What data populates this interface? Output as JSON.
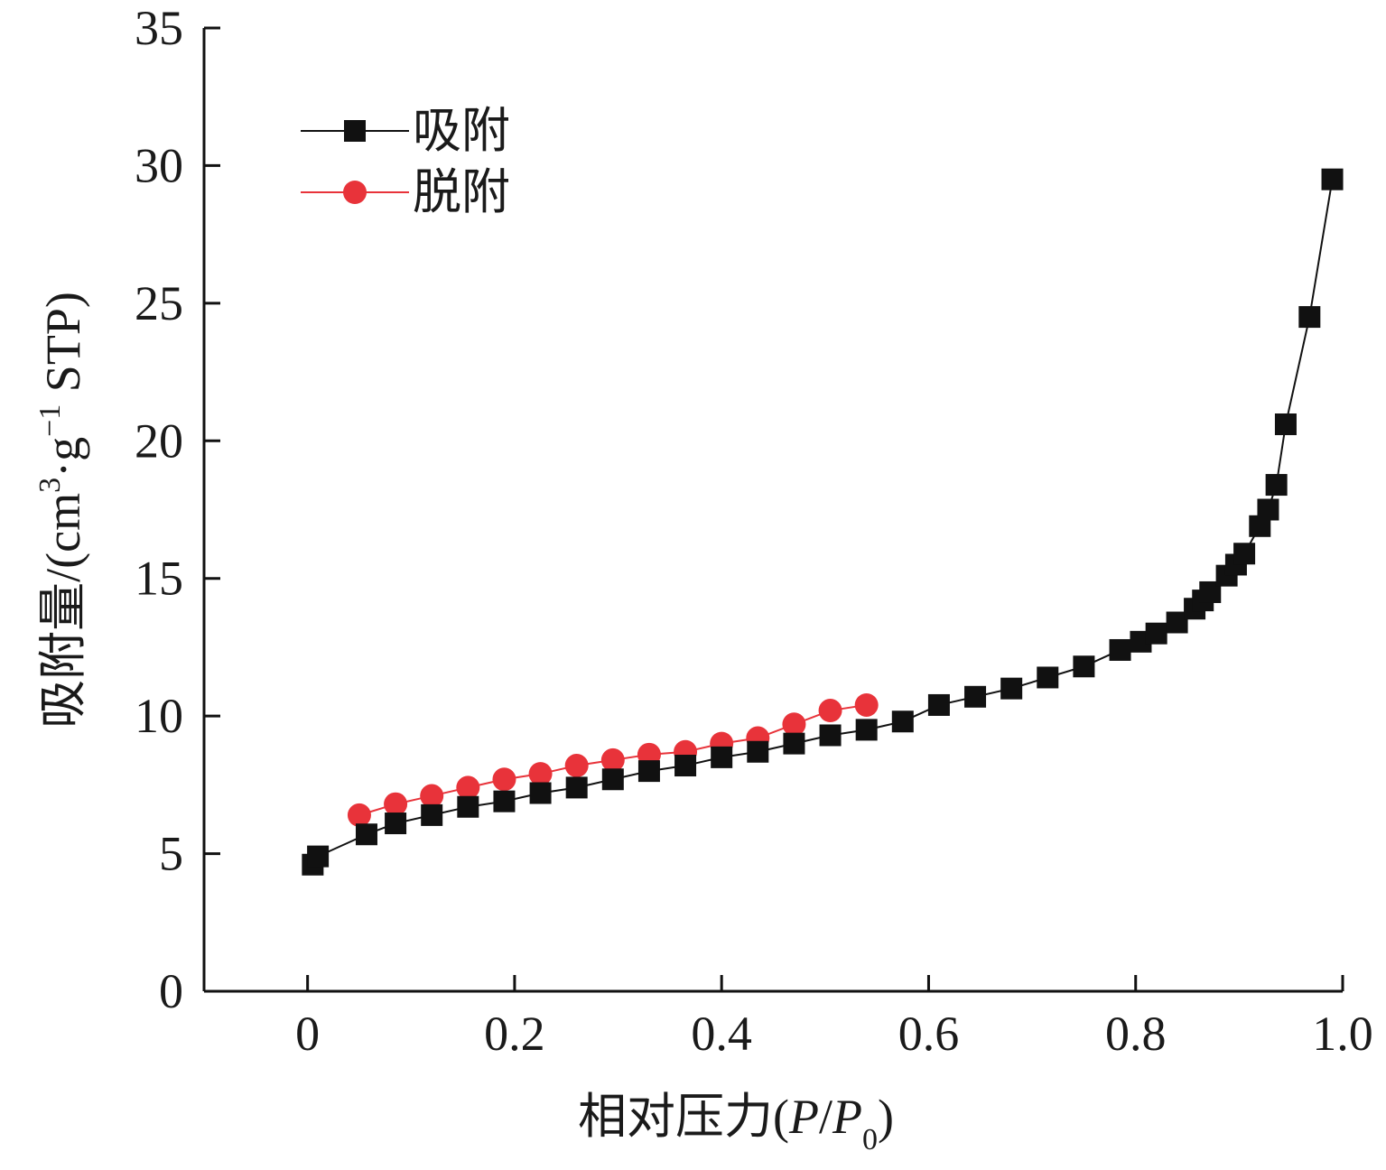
{
  "chart_data": {
    "type": "scatter",
    "xlabel_main": "相对压力(",
    "xlabel_p": "P",
    "xlabel_slash": "/",
    "xlabel_p0": "P",
    "xlabel_sub": "0",
    "xlabel_close": ")",
    "ylabel_main": "吸附量/(cm",
    "ylabel_sup1": "3",
    "ylabel_dot_g": "·g",
    "ylabel_sup2": "−1",
    "ylabel_end": " STP)",
    "xlim": [
      -0.1,
      1.0
    ],
    "ylim": [
      0,
      35
    ],
    "xticks": [
      0,
      0.2,
      0.4,
      0.6,
      0.8,
      1.0
    ],
    "xtick_labels": [
      "0",
      "0.2",
      "0.4",
      "0.6",
      "0.8",
      "1.0"
    ],
    "yticks": [
      0,
      5,
      10,
      15,
      20,
      25,
      30,
      35
    ],
    "ytick_labels": [
      "0",
      "5",
      "10",
      "15",
      "20",
      "25",
      "30",
      "35"
    ],
    "legend_position": "top-left",
    "series": [
      {
        "name": "吸附",
        "marker": "square",
        "color": "#111111",
        "x": [
          0.005,
          0.01,
          0.057,
          0.085,
          0.12,
          0.155,
          0.19,
          0.225,
          0.26,
          0.295,
          0.33,
          0.365,
          0.4,
          0.435,
          0.47,
          0.505,
          0.54,
          0.575,
          0.61,
          0.645,
          0.68,
          0.715,
          0.75,
          0.785,
          0.805,
          0.82,
          0.84,
          0.857,
          0.865,
          0.872,
          0.888,
          0.897,
          0.905,
          0.92,
          0.928,
          0.936,
          0.945,
          0.968,
          0.99
        ],
        "y": [
          4.6,
          4.9,
          5.7,
          6.1,
          6.4,
          6.7,
          6.9,
          7.2,
          7.4,
          7.7,
          8.0,
          8.2,
          8.5,
          8.7,
          9.0,
          9.3,
          9.5,
          9.8,
          10.4,
          10.7,
          11.0,
          11.4,
          11.8,
          12.4,
          12.7,
          13.0,
          13.4,
          13.9,
          14.2,
          14.5,
          15.1,
          15.5,
          15.9,
          16.9,
          17.5,
          18.4,
          20.6,
          24.5,
          29.5
        ]
      },
      {
        "name": "脱附",
        "marker": "circle",
        "color": "#e8333a",
        "x": [
          0.05,
          0.085,
          0.12,
          0.155,
          0.19,
          0.225,
          0.26,
          0.295,
          0.33,
          0.365,
          0.4,
          0.435,
          0.47,
          0.505,
          0.54
        ],
        "y": [
          6.4,
          6.8,
          7.1,
          7.4,
          7.7,
          7.9,
          8.2,
          8.4,
          8.6,
          8.7,
          9.0,
          9.2,
          9.7,
          10.2,
          10.4
        ]
      }
    ]
  }
}
